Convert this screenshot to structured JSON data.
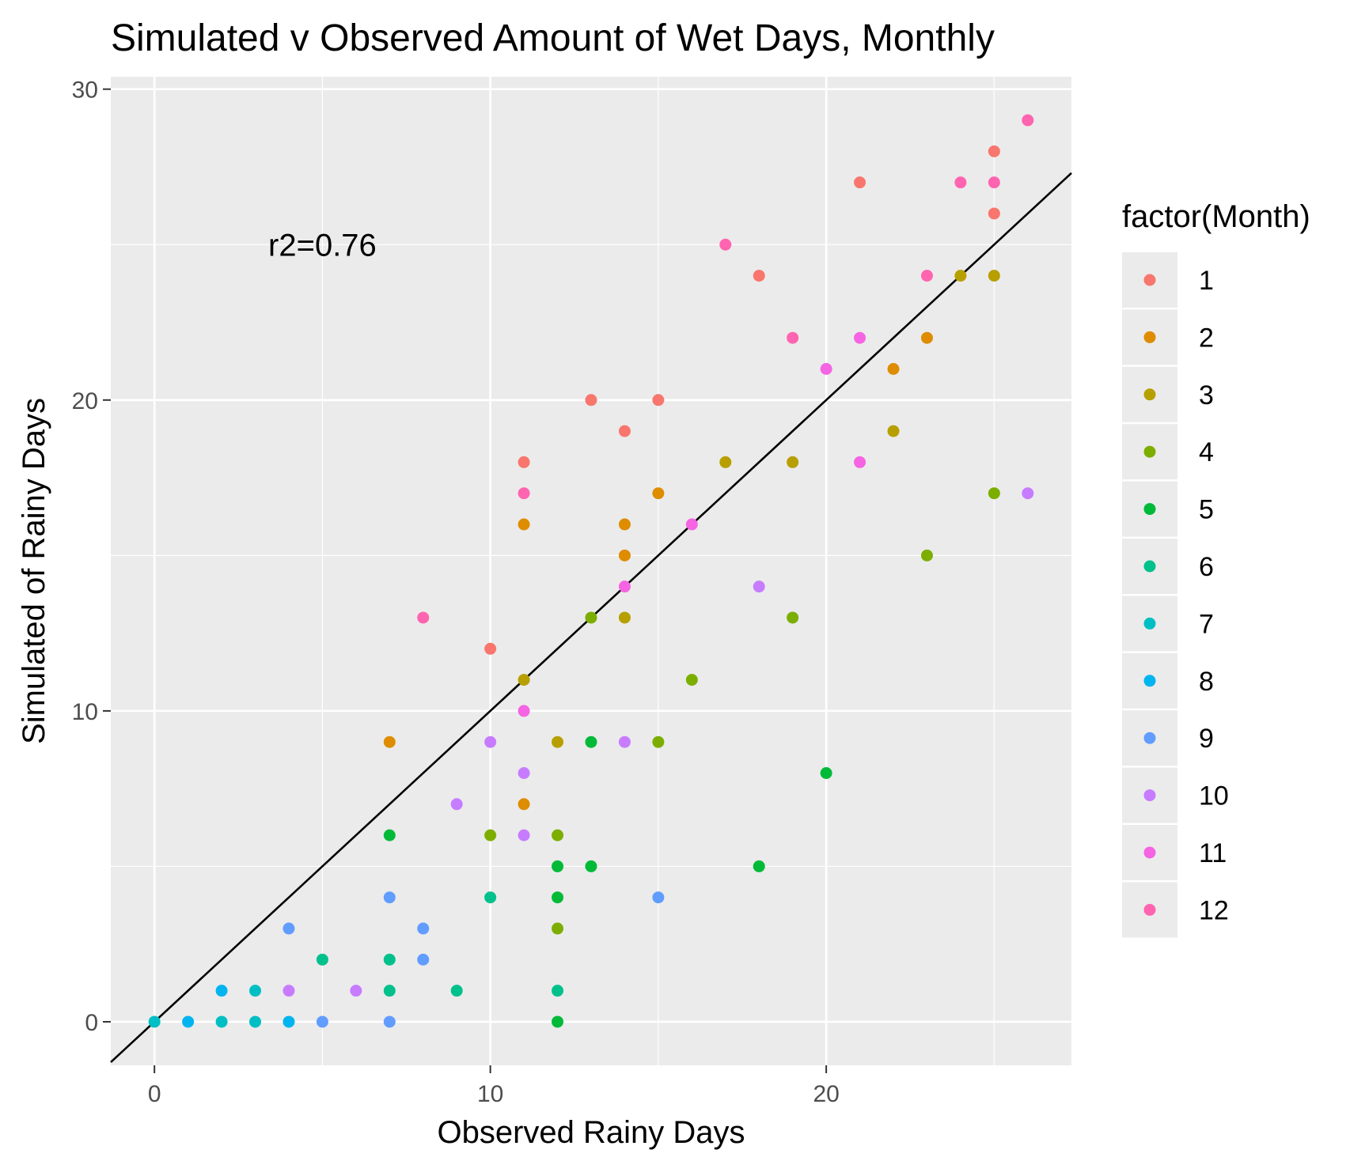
{
  "chart_data": {
    "type": "scatter",
    "title": "Simulated v Observed Amount of Wet Days, Monthly",
    "xlabel": "Observed Rainy Days",
    "ylabel": "Simulated of Rainy Days",
    "xlim": [
      -1.3,
      27.3
    ],
    "ylim": [
      -1.4,
      30.4
    ],
    "x_ticks": [
      0,
      10,
      20
    ],
    "y_ticks": [
      0,
      10,
      20,
      30
    ],
    "x_tick_labels": [
      "0",
      "10",
      "20"
    ],
    "y_tick_labels": [
      "0",
      "10",
      "20",
      "30"
    ],
    "grid": true,
    "legend": {
      "title": "factor(Month)",
      "position": "right"
    },
    "annotation": {
      "text": "r2=0.76",
      "x": 5,
      "y": 25
    },
    "reference_line": {
      "slope": 1,
      "intercept": 0,
      "color": "#000000"
    },
    "series": [
      {
        "name": "1",
        "color": "#F8766D",
        "points": [
          [
            10,
            12
          ],
          [
            11,
            18
          ],
          [
            13,
            20
          ],
          [
            14,
            19
          ],
          [
            15,
            20
          ],
          [
            18,
            24
          ],
          [
            21,
            27
          ],
          [
            25,
            28
          ],
          [
            25,
            26
          ]
        ]
      },
      {
        "name": "2",
        "color": "#DE8C00",
        "points": [
          [
            7,
            9
          ],
          [
            11,
            16
          ],
          [
            11,
            7
          ],
          [
            14,
            16
          ],
          [
            14,
            15
          ],
          [
            15,
            17
          ],
          [
            22,
            21
          ],
          [
            23,
            22
          ]
        ]
      },
      {
        "name": "3",
        "color": "#B79F00",
        "points": [
          [
            11,
            11
          ],
          [
            12,
            9
          ],
          [
            14,
            13
          ],
          [
            17,
            18
          ],
          [
            19,
            18
          ],
          [
            22,
            19
          ],
          [
            24,
            24
          ],
          [
            25,
            24
          ]
        ]
      },
      {
        "name": "4",
        "color": "#7CAE00",
        "points": [
          [
            10,
            6
          ],
          [
            12,
            6
          ],
          [
            12,
            3
          ],
          [
            13,
            13
          ],
          [
            15,
            9
          ],
          [
            16,
            11
          ],
          [
            19,
            13
          ],
          [
            23,
            15
          ],
          [
            25,
            17
          ]
        ]
      },
      {
        "name": "5",
        "color": "#00BA38",
        "points": [
          [
            7,
            6
          ],
          [
            12,
            5
          ],
          [
            12,
            4
          ],
          [
            12,
            0
          ],
          [
            13,
            9
          ],
          [
            13,
            5
          ],
          [
            18,
            5
          ],
          [
            20,
            8
          ]
        ]
      },
      {
        "name": "6",
        "color": "#00C08B",
        "points": [
          [
            5,
            2
          ],
          [
            7,
            2
          ],
          [
            7,
            1
          ],
          [
            9,
            1
          ],
          [
            10,
            4
          ],
          [
            12,
            1
          ]
        ]
      },
      {
        "name": "7",
        "color": "#00BFC4",
        "points": [
          [
            0,
            0
          ],
          [
            2,
            0
          ],
          [
            3,
            1
          ],
          [
            3,
            0
          ]
        ]
      },
      {
        "name": "8",
        "color": "#00B4F0",
        "points": [
          [
            1,
            0
          ],
          [
            2,
            1
          ],
          [
            4,
            0
          ]
        ]
      },
      {
        "name": "9",
        "color": "#619CFF",
        "points": [
          [
            4,
            3
          ],
          [
            5,
            0
          ],
          [
            7,
            4
          ],
          [
            7,
            0
          ],
          [
            8,
            3
          ],
          [
            8,
            2
          ],
          [
            15,
            4
          ]
        ]
      },
      {
        "name": "10",
        "color": "#C77CFF",
        "points": [
          [
            4,
            1
          ],
          [
            6,
            1
          ],
          [
            9,
            7
          ],
          [
            10,
            9
          ],
          [
            11,
            8
          ],
          [
            11,
            6
          ],
          [
            14,
            9
          ],
          [
            18,
            14
          ],
          [
            26,
            17
          ]
        ]
      },
      {
        "name": "11",
        "color": "#F564E3",
        "points": [
          [
            11,
            10
          ],
          [
            14,
            14
          ],
          [
            16,
            16
          ],
          [
            20,
            21
          ],
          [
            21,
            22
          ],
          [
            21,
            18
          ]
        ]
      },
      {
        "name": "12",
        "color": "#FF64B0",
        "points": [
          [
            8,
            13
          ],
          [
            11,
            17
          ],
          [
            17,
            25
          ],
          [
            19,
            22
          ],
          [
            23,
            24
          ],
          [
            24,
            27
          ],
          [
            25,
            27
          ],
          [
            26,
            29
          ]
        ]
      }
    ]
  }
}
